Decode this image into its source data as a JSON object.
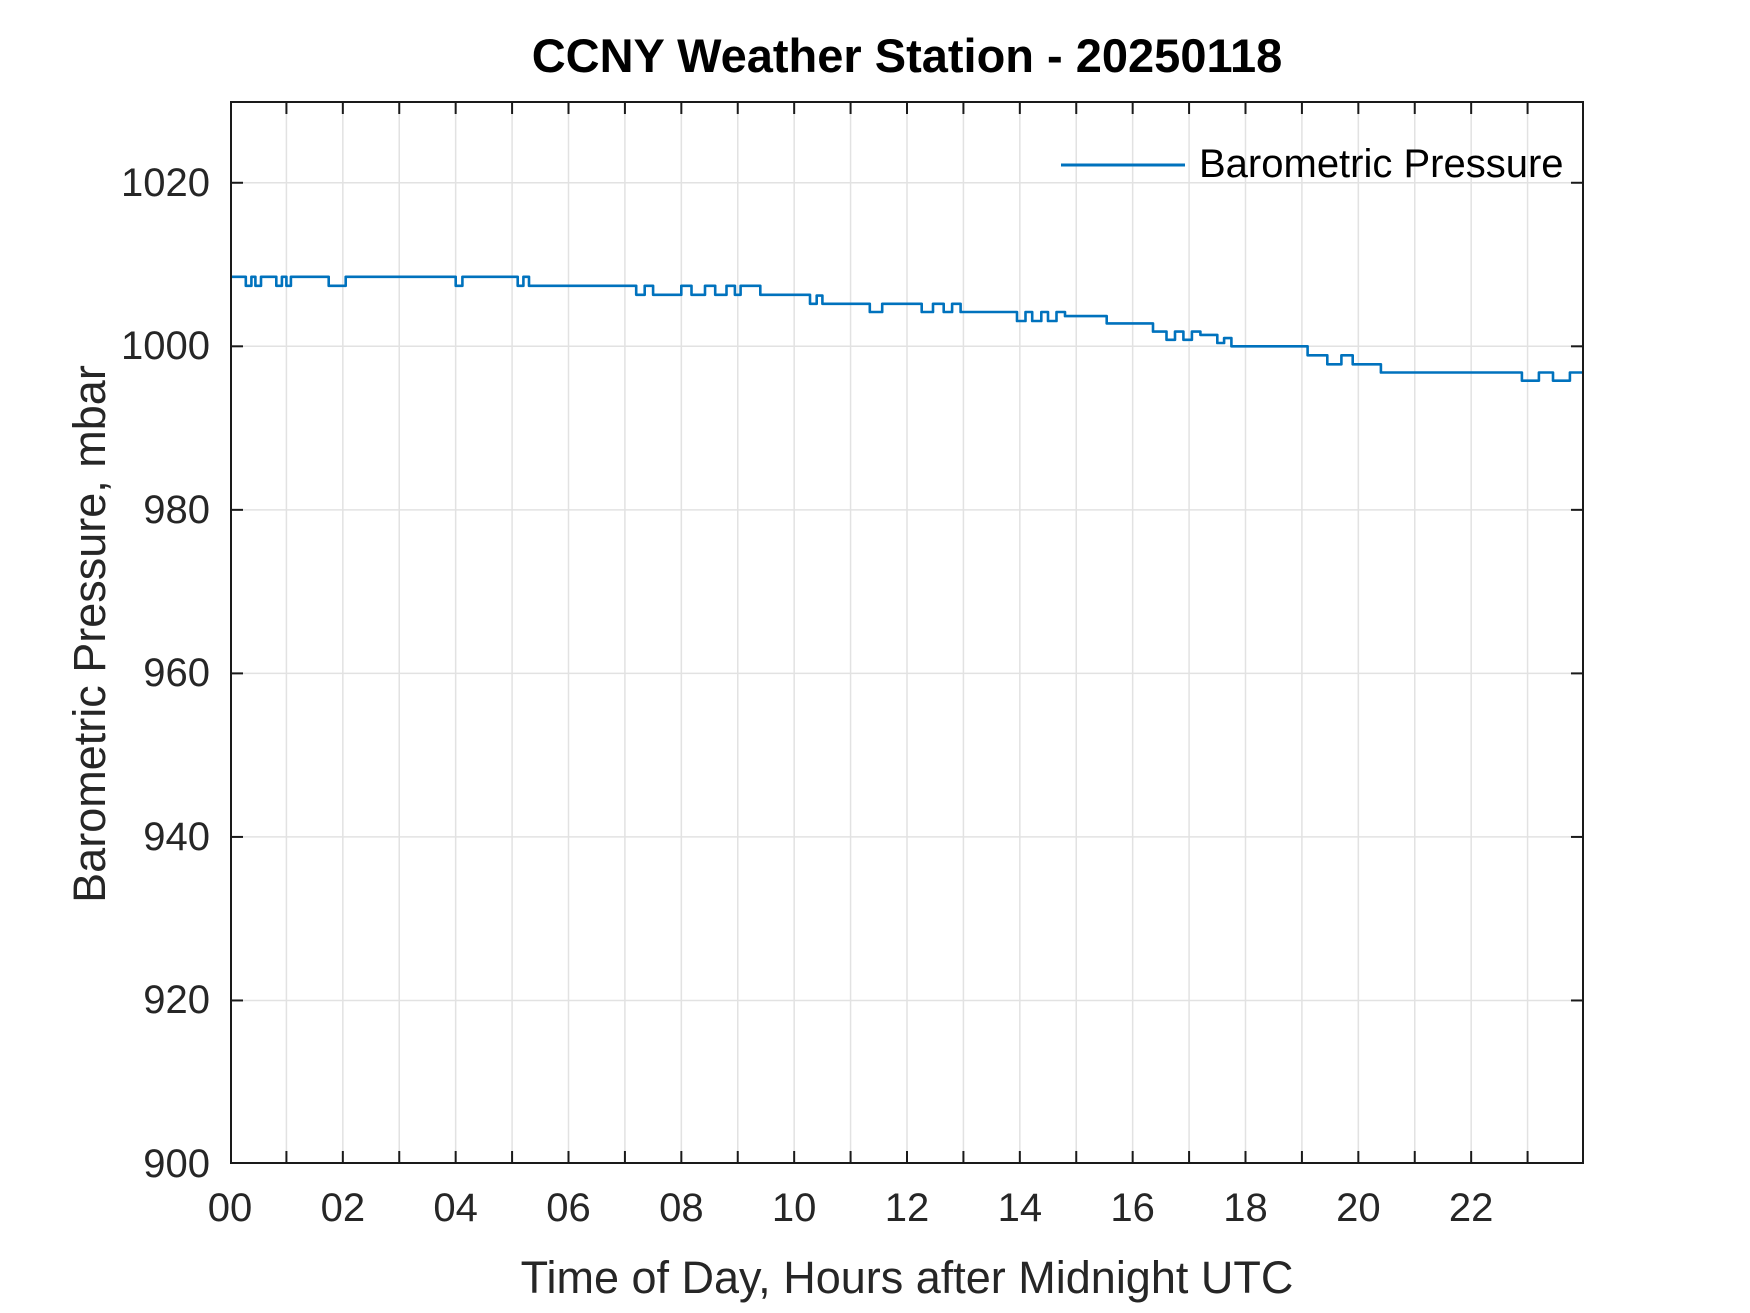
{
  "chart_data": {
    "type": "line",
    "title": "CCNY Weather Station - 20250118",
    "xlabel": "Time of Day, Hours after Midnight UTC",
    "ylabel": "Barometric Pressure, mbar",
    "legend": {
      "entries": [
        "Barometric Pressure"
      ],
      "position": "top-right",
      "box": false
    },
    "xlim": [
      0,
      24
    ],
    "ylim": [
      900,
      1030
    ],
    "grid": true,
    "x_grid_interval_hours": 1,
    "x_major_ticks": {
      "values": [
        0,
        2,
        4,
        6,
        8,
        10,
        12,
        14,
        16,
        18,
        20,
        22
      ],
      "labels": [
        "00",
        "02",
        "04",
        "06",
        "08",
        "10",
        "12",
        "14",
        "16",
        "18",
        "20",
        "22"
      ]
    },
    "y_ticks": {
      "values": [
        900,
        920,
        940,
        960,
        980,
        1000,
        1020
      ],
      "labels": [
        "900",
        "920",
        "940",
        "960",
        "980",
        "1000",
        "1020"
      ]
    },
    "colors": {
      "line": "#0072BD",
      "axis": "#1a1a1a",
      "tick_label": "#262626",
      "grid": "#E2E2E2"
    },
    "series": [
      {
        "name": "Barometric Pressure",
        "units": "mbar",
        "mode": "step-after",
        "end_hour": 24,
        "points": [
          [
            0.0,
            1008.5
          ],
          [
            0.28,
            1007.4
          ],
          [
            0.38,
            1008.5
          ],
          [
            0.45,
            1007.4
          ],
          [
            0.55,
            1008.5
          ],
          [
            0.82,
            1007.4
          ],
          [
            0.92,
            1008.5
          ],
          [
            1.0,
            1007.4
          ],
          [
            1.08,
            1008.5
          ],
          [
            1.75,
            1007.4
          ],
          [
            2.05,
            1008.5
          ],
          [
            4.0,
            1007.4
          ],
          [
            4.12,
            1008.5
          ],
          [
            5.1,
            1007.4
          ],
          [
            5.2,
            1008.5
          ],
          [
            5.3,
            1007.4
          ],
          [
            7.2,
            1006.3
          ],
          [
            7.35,
            1007.4
          ],
          [
            7.5,
            1006.3
          ],
          [
            8.0,
            1007.4
          ],
          [
            8.18,
            1006.3
          ],
          [
            8.42,
            1007.4
          ],
          [
            8.6,
            1006.3
          ],
          [
            8.8,
            1007.4
          ],
          [
            8.95,
            1006.3
          ],
          [
            9.05,
            1007.4
          ],
          [
            9.4,
            1006.3
          ],
          [
            10.28,
            1005.2
          ],
          [
            10.4,
            1006.2
          ],
          [
            10.5,
            1005.2
          ],
          [
            11.34,
            1004.2
          ],
          [
            11.56,
            1005.2
          ],
          [
            12.26,
            1004.2
          ],
          [
            12.46,
            1005.2
          ],
          [
            12.65,
            1004.2
          ],
          [
            12.8,
            1005.2
          ],
          [
            12.95,
            1004.2
          ],
          [
            13.95,
            1003.1
          ],
          [
            14.1,
            1004.2
          ],
          [
            14.22,
            1003.1
          ],
          [
            14.38,
            1004.2
          ],
          [
            14.5,
            1003.1
          ],
          [
            14.65,
            1004.2
          ],
          [
            14.8,
            1003.7
          ],
          [
            15.54,
            1002.8
          ],
          [
            16.36,
            1001.8
          ],
          [
            16.6,
            1000.8
          ],
          [
            16.75,
            1001.8
          ],
          [
            16.9,
            1000.8
          ],
          [
            17.05,
            1001.8
          ],
          [
            17.2,
            1001.4
          ],
          [
            17.5,
            1000.4
          ],
          [
            17.62,
            1001.0
          ],
          [
            17.75,
            1000.0
          ],
          [
            19.1,
            998.9
          ],
          [
            19.45,
            997.8
          ],
          [
            19.7,
            998.9
          ],
          [
            19.9,
            997.8
          ],
          [
            20.4,
            996.8
          ],
          [
            22.9,
            995.8
          ],
          [
            23.2,
            996.8
          ],
          [
            23.45,
            995.8
          ],
          [
            23.75,
            996.8
          ]
        ]
      }
    ]
  }
}
